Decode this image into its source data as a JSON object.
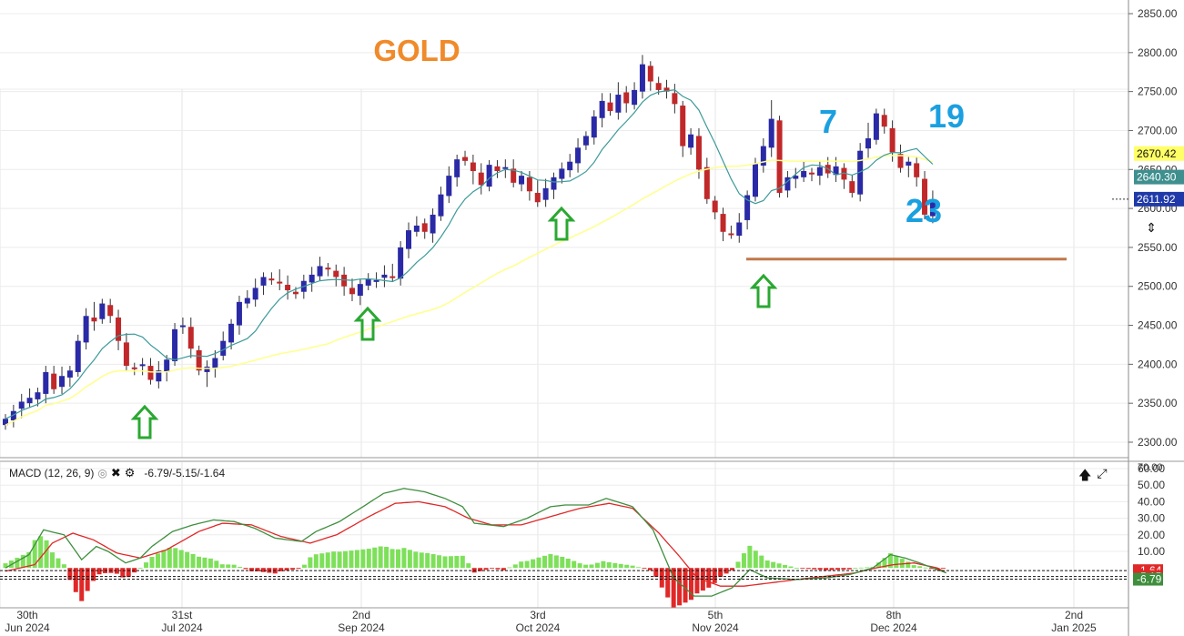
{
  "chart_data": [
    {
      "type": "candlestick",
      "title": "GOLD",
      "ylim": [
        2285,
        2860
      ],
      "y_ticks": [
        "2850.00",
        "2800.00",
        "2750.00",
        "2700.00",
        "2650.00",
        "2600.00",
        "2550.00",
        "2500.00",
        "2450.00",
        "2400.00",
        "2350.00",
        "2300.00"
      ],
      "x_tick_labels": [
        {
          "day": "30th",
          "month": "Jun 2024"
        },
        {
          "day": "31st",
          "month": "Jul 2024"
        },
        {
          "day": "2nd",
          "month": "Sep 2024"
        },
        {
          "day": "3rd",
          "month": "Oct 2024"
        },
        {
          "day": "5th",
          "month": "Nov 2024"
        },
        {
          "day": "8th",
          "month": "Dec 2024"
        },
        {
          "day": "2nd",
          "month": "Jan 2025"
        }
      ],
      "price_labels": [
        {
          "text": "2670.42",
          "value": 2670.42,
          "bg": "#ffff66",
          "fg": "#111111"
        },
        {
          "text": "2640.30",
          "value": 2640.3,
          "bg": "#3f8f8f",
          "fg": "#ffffff"
        },
        {
          "text": "2611.92",
          "value": 2611.92,
          "bg": "#1f3aa8",
          "fg": "#ffffff"
        }
      ],
      "closes": [
        2330,
        2340,
        2352,
        2357,
        2364,
        2390,
        2368,
        2385,
        2392,
        2430,
        2462,
        2455,
        2478,
        2462,
        2430,
        2398,
        2395,
        2400,
        2380,
        2392,
        2406,
        2445,
        2450,
        2420,
        2392,
        2397,
        2408,
        2430,
        2452,
        2480,
        2485,
        2498,
        2512,
        2508,
        2504,
        2495,
        2490,
        2507,
        2515,
        2526,
        2522,
        2512,
        2500,
        2490,
        2503,
        2509,
        2508,
        2515,
        2512,
        2550,
        2572,
        2578,
        2570,
        2592,
        2618,
        2642,
        2663,
        2661,
        2648,
        2630,
        2656,
        2648,
        2653,
        2633,
        2642,
        2622,
        2608,
        2626,
        2640,
        2651,
        2660,
        2678,
        2693,
        2718,
        2738,
        2725,
        2746,
        2735,
        2752,
        2785,
        2763,
        2752,
        2750,
        2734,
        2680,
        2695,
        2650,
        2612,
        2595,
        2570,
        2567,
        2582,
        2617,
        2657,
        2680,
        2715,
        2620,
        2640,
        2642,
        2648,
        2644,
        2653,
        2645,
        2654,
        2637,
        2620,
        2674,
        2690,
        2722,
        2705,
        2672,
        2652,
        2660,
        2640,
        2592,
        2611
      ],
      "trend_line": {
        "value": 2535,
        "color": "#c0784a"
      },
      "annotations": [
        {
          "text": "7",
          "color": "#1aa0e0"
        },
        {
          "text": "19",
          "color": "#1aa0e0"
        },
        {
          "text": "23",
          "color": "#1aa0e0"
        }
      ],
      "colors": {
        "up": "#2a2aa6",
        "down": "#c0282a",
        "ma_fast": "#3d9a9a",
        "ma_slow": "#ffff8c",
        "arrow": "#2aa832",
        "title": "#f08a2a"
      }
    },
    {
      "type": "macd",
      "label": "MACD (12, 26, 9)",
      "values_text": "-6.79/-5.15/-1.64",
      "ylim": [
        -22,
        62
      ],
      "y_ticks": [
        "60.00",
        "50.00",
        "40.00",
        "30.00",
        "20.00",
        "10.00"
      ],
      "value_labels": [
        {
          "text": "-1.64",
          "value": -1.64,
          "bg": "#e02828",
          "fg": "#ffffff"
        },
        {
          "text": "-5.15",
          "value": -5.15,
          "bg": "#e02828",
          "fg": "#ffffff"
        },
        {
          "text": "-6.79",
          "value": -6.79,
          "bg": "#3e8e3e",
          "fg": "#ffffff"
        }
      ],
      "macd_keys": [
        [
          0,
          0
        ],
        [
          8,
          8
        ],
        [
          13,
          23
        ],
        [
          20,
          20
        ],
        [
          26,
          5
        ],
        [
          31,
          13
        ],
        [
          35,
          10
        ],
        [
          41,
          3
        ],
        [
          46,
          6
        ],
        [
          50,
          13
        ],
        [
          57,
          22
        ],
        [
          64,
          26
        ],
        [
          71,
          29
        ],
        [
          78,
          28
        ],
        [
          85,
          24
        ],
        [
          92,
          18
        ],
        [
          101,
          16
        ],
        [
          106,
          22
        ],
        [
          114,
          28
        ],
        [
          122,
          37
        ],
        [
          129,
          45
        ],
        [
          136,
          48
        ],
        [
          143,
          46
        ],
        [
          150,
          42
        ],
        [
          156,
          37
        ],
        [
          160,
          27
        ],
        [
          170,
          25
        ],
        [
          178,
          30
        ],
        [
          186,
          37
        ],
        [
          191,
          38
        ],
        [
          199,
          38
        ],
        [
          205,
          42
        ],
        [
          214,
          37
        ],
        [
          221,
          23
        ],
        [
          228,
          -6
        ],
        [
          235,
          -17
        ],
        [
          241,
          -17
        ],
        [
          248,
          -12
        ],
        [
          254,
          -1
        ],
        [
          260,
          -6
        ],
        [
          270,
          -7
        ],
        [
          280,
          -6
        ],
        [
          288,
          -4
        ],
        [
          296,
          0
        ],
        [
          302,
          8
        ],
        [
          307,
          6
        ],
        [
          312,
          3
        ],
        [
          318,
          -1
        ],
        [
          321,
          -3
        ]
      ],
      "signal_keys": [
        [
          0,
          -2
        ],
        [
          10,
          2
        ],
        [
          16,
          15
        ],
        [
          23,
          21
        ],
        [
          30,
          17
        ],
        [
          38,
          9
        ],
        [
          46,
          6
        ],
        [
          55,
          11
        ],
        [
          66,
          22
        ],
        [
          74,
          27
        ],
        [
          84,
          26
        ],
        [
          94,
          19
        ],
        [
          104,
          15
        ],
        [
          113,
          20
        ],
        [
          124,
          31
        ],
        [
          133,
          39
        ],
        [
          141,
          40
        ],
        [
          150,
          37
        ],
        [
          158,
          30
        ],
        [
          166,
          26
        ],
        [
          176,
          26
        ],
        [
          186,
          31
        ],
        [
          196,
          36
        ],
        [
          206,
          39
        ],
        [
          214,
          36
        ],
        [
          223,
          21
        ],
        [
          230,
          7
        ],
        [
          236,
          -6
        ],
        [
          244,
          -11
        ],
        [
          252,
          -11
        ],
        [
          261,
          -9
        ],
        [
          270,
          -7
        ],
        [
          280,
          -5
        ],
        [
          290,
          -3
        ],
        [
          297,
          0
        ],
        [
          303,
          2
        ],
        [
          310,
          3
        ],
        [
          318,
          0
        ],
        [
          321,
          -3
        ]
      ],
      "colors": {
        "macd": "#3e8e3e",
        "signal": "#e02828",
        "hist_pos": "#7ee05a",
        "hist_neg": "#e02828"
      }
    }
  ],
  "toolbar": {
    "eye_icon": "eye-icon",
    "close_icon": "close-icon",
    "gear_icon": "gear-icon"
  }
}
